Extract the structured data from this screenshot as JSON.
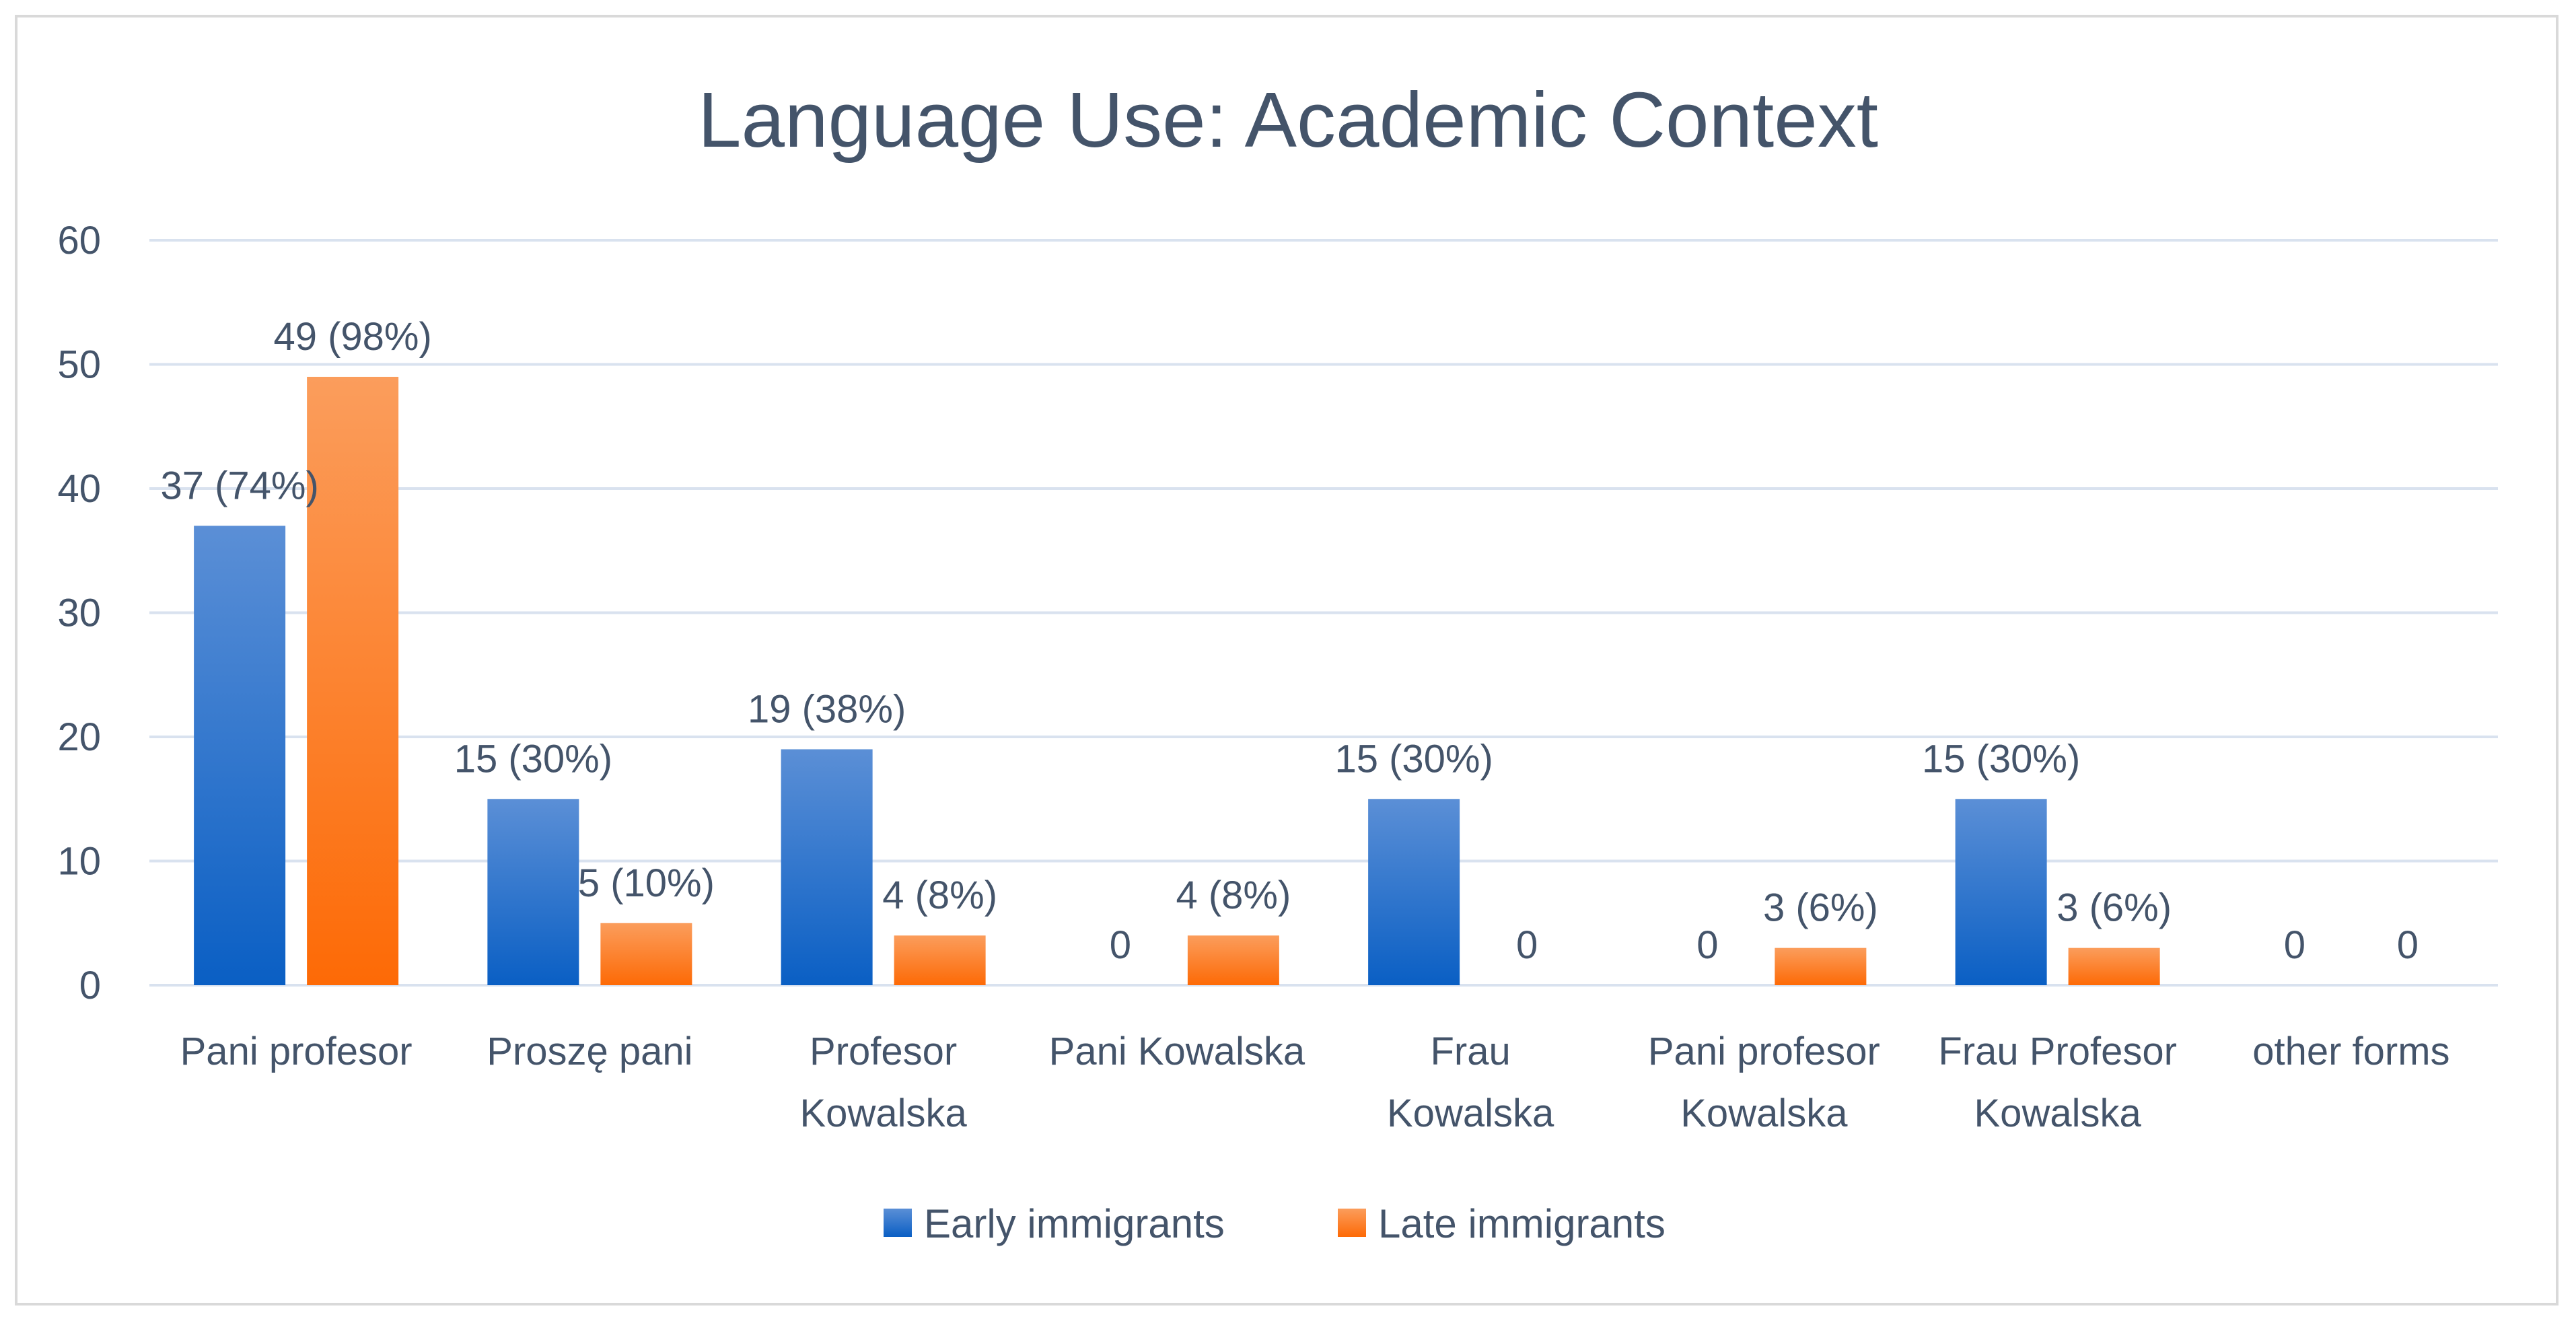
{
  "chart_data": {
    "type": "bar",
    "title": "Language Use: Academic Context",
    "xlabel": "",
    "ylabel": "",
    "ylim": [
      0,
      60
    ],
    "yticks": [
      "0",
      "10",
      "20",
      "30",
      "40",
      "50",
      "60"
    ],
    "grid": true,
    "legend_position": "bottom",
    "categories": [
      [
        "Pani profesor"
      ],
      [
        "Proszę pani"
      ],
      [
        "Profesor",
        "Kowalska"
      ],
      [
        "Pani Kowalska"
      ],
      [
        "Frau",
        "Kowalska"
      ],
      [
        "Pani profesor",
        "Kowalska"
      ],
      [
        "Frau Profesor",
        "Kowalska"
      ],
      [
        "other forms"
      ]
    ],
    "series": [
      {
        "name": "Early immigrants",
        "values": [
          37,
          15,
          19,
          0,
          15,
          0,
          15,
          0
        ],
        "labels": [
          "37 (74%)",
          "15 (30%)",
          "19 (38%)",
          "0",
          "15 (30%)",
          "0",
          "15 (30%)",
          "0"
        ],
        "color_top": "#5b8fd6",
        "color_bottom": "#0a5fc4"
      },
      {
        "name": "Late immigrants",
        "values": [
          49,
          5,
          4,
          4,
          0,
          3,
          3,
          0
        ],
        "labels": [
          "49 (98%)",
          "5 (10%)",
          "4 (8%)",
          "4 (8%)",
          "0",
          "3 (6%)",
          "3 (6%)",
          "0"
        ],
        "color_top": "#fb9d5c",
        "color_bottom": "#fd6a06"
      }
    ],
    "gridline_color": "#d9e2ef",
    "text_color": "#44546a"
  }
}
